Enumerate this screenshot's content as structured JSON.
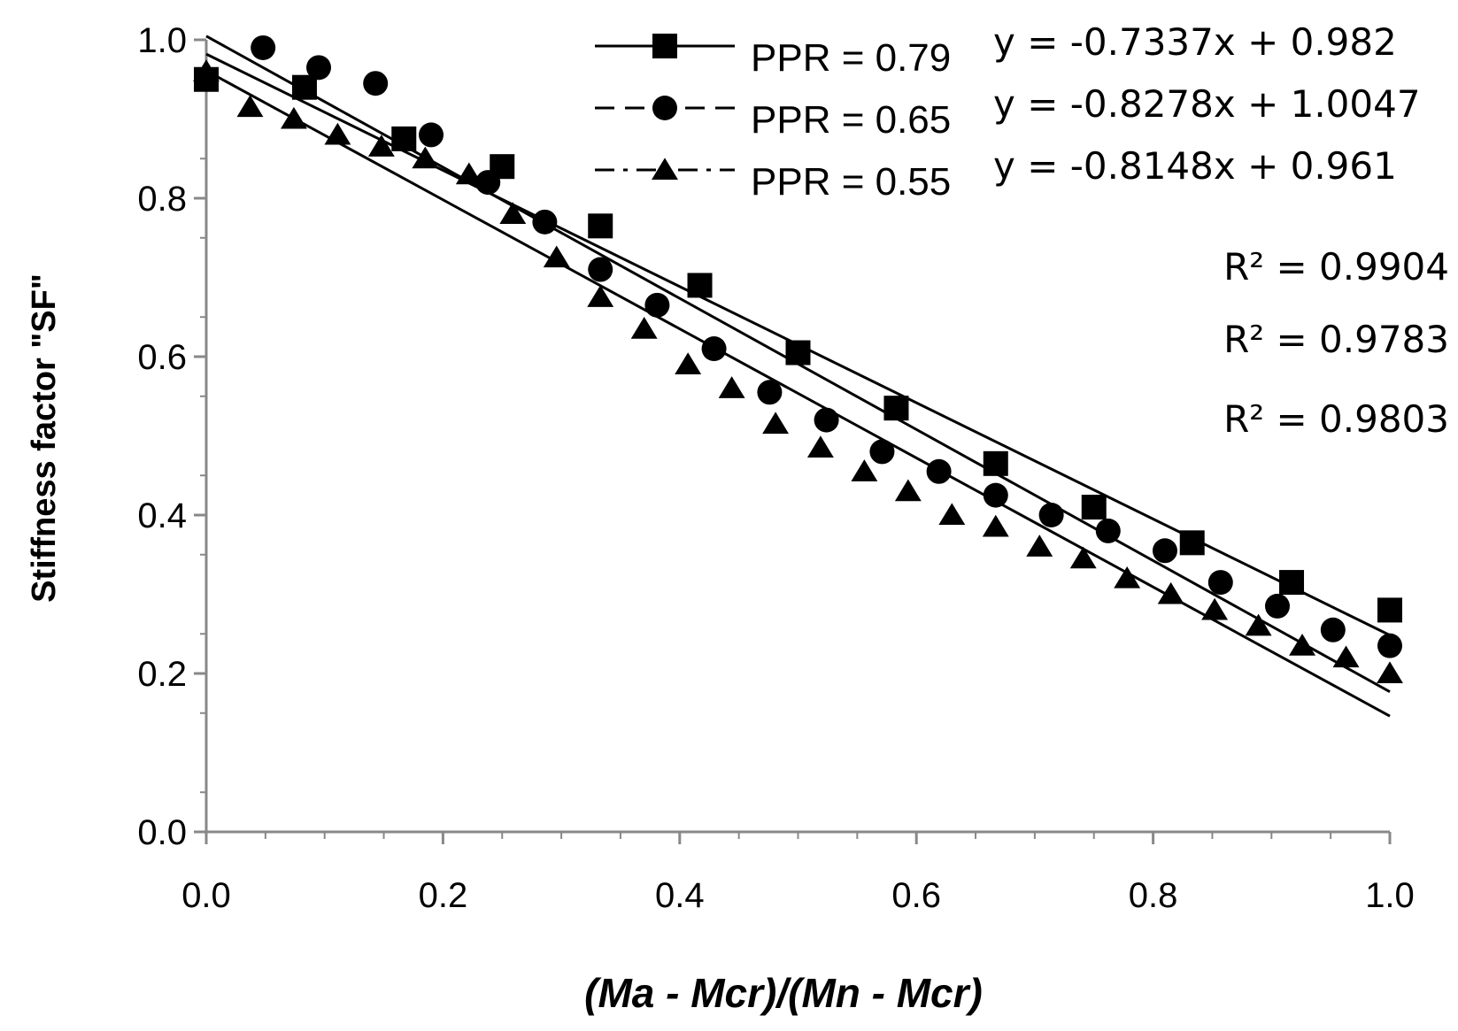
{
  "chart_data": {
    "type": "scatter",
    "xlabel": "(Ma - Mcr)/(Mn - Mcr)",
    "ylabel": "Stiffness factor \"SF\"",
    "xlim": [
      0,
      1
    ],
    "ylim": [
      0,
      1
    ],
    "xticks": [
      "0.0",
      "0.2",
      "0.4",
      "0.6",
      "0.8",
      "1.0"
    ],
    "yticks": [
      "0.0",
      "0.2",
      "0.4",
      "0.6",
      "0.8",
      "1.0"
    ],
    "legend_position": "top-right",
    "series": [
      {
        "name": "PPR = 0.79",
        "marker": "square",
        "line_style": "solid",
        "equation": "y = -0.7337x + 0.982",
        "r2": "R² = 0.9904",
        "trend": {
          "slope": -0.7337,
          "intercept": 0.982
        },
        "x": [
          0.0,
          0.083,
          0.167,
          0.25,
          0.333,
          0.417,
          0.5,
          0.583,
          0.667,
          0.75,
          0.833,
          0.917,
          1.0
        ],
        "y": [
          0.95,
          0.94,
          0.875,
          0.84,
          0.765,
          0.69,
          0.605,
          0.535,
          0.465,
          0.41,
          0.365,
          0.315,
          0.28
        ]
      },
      {
        "name": "PPR = 0.65",
        "marker": "circle",
        "line_style": "dash",
        "equation": "y = -0.8278x + 1.0047",
        "r2": "R² = 0.9783",
        "trend": {
          "slope": -0.8278,
          "intercept": 1.0047
        },
        "x": [
          0.048,
          0.095,
          0.143,
          0.19,
          0.238,
          0.286,
          0.333,
          0.381,
          0.429,
          0.476,
          0.524,
          0.571,
          0.619,
          0.667,
          0.714,
          0.762,
          0.81,
          0.857,
          0.905,
          0.952,
          1.0
        ],
        "y": [
          0.99,
          0.965,
          0.945,
          0.88,
          0.82,
          0.77,
          0.71,
          0.665,
          0.61,
          0.555,
          0.52,
          0.48,
          0.455,
          0.425,
          0.4,
          0.38,
          0.355,
          0.315,
          0.285,
          0.255,
          0.235
        ]
      },
      {
        "name": "PPR = 0.55",
        "marker": "triangle",
        "line_style": "dash-dot",
        "equation": "y = -0.8148x + 0.961",
        "r2": "R² = 0.9803",
        "trend": {
          "slope": -0.8148,
          "intercept": 0.961
        },
        "x": [
          0.0,
          0.037,
          0.074,
          0.111,
          0.148,
          0.185,
          0.222,
          0.259,
          0.296,
          0.333,
          0.37,
          0.407,
          0.444,
          0.481,
          0.519,
          0.556,
          0.593,
          0.63,
          0.667,
          0.704,
          0.741,
          0.778,
          0.815,
          0.852,
          0.889,
          0.926,
          0.963,
          1.0
        ],
        "y": [
          0.96,
          0.915,
          0.9,
          0.88,
          0.865,
          0.85,
          0.83,
          0.78,
          0.725,
          0.675,
          0.635,
          0.59,
          0.56,
          0.515,
          0.485,
          0.455,
          0.43,
          0.4,
          0.385,
          0.36,
          0.345,
          0.32,
          0.3,
          0.28,
          0.26,
          0.235,
          0.22,
          0.2
        ]
      }
    ]
  }
}
